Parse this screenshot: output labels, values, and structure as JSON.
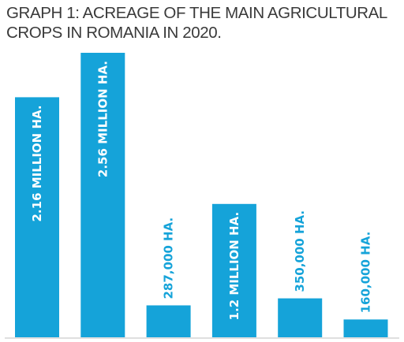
{
  "title_line1": "GRAPH 1: ACREAGE OF THE MAIN AGRICULTURAL",
  "title_line2": "CROPS IN ROMANIA IN 2020.",
  "chart_data": {
    "type": "bar",
    "title": "GRAPH 1: ACREAGE OF THE MAIN AGRICULTURAL CROPS IN ROMANIA IN 2020.",
    "unit": "ha",
    "values": [
      2160000,
      2560000,
      287000,
      1200000,
      350000,
      160000
    ],
    "labels": [
      "2.16 MILLION HA.",
      "2.56 MILLION HA.",
      "287,000 HA.",
      "1.2 MILLION HA.",
      "350,000 HA.",
      "160,000 HA."
    ],
    "ylim": [
      0,
      2560000
    ],
    "grid": false,
    "legend": "none",
    "colors": {
      "bar": "#15a3d9",
      "label_inside": "#ffffff",
      "label_outside": "#15a3d9",
      "baseline": "#bfbfbf"
    }
  }
}
